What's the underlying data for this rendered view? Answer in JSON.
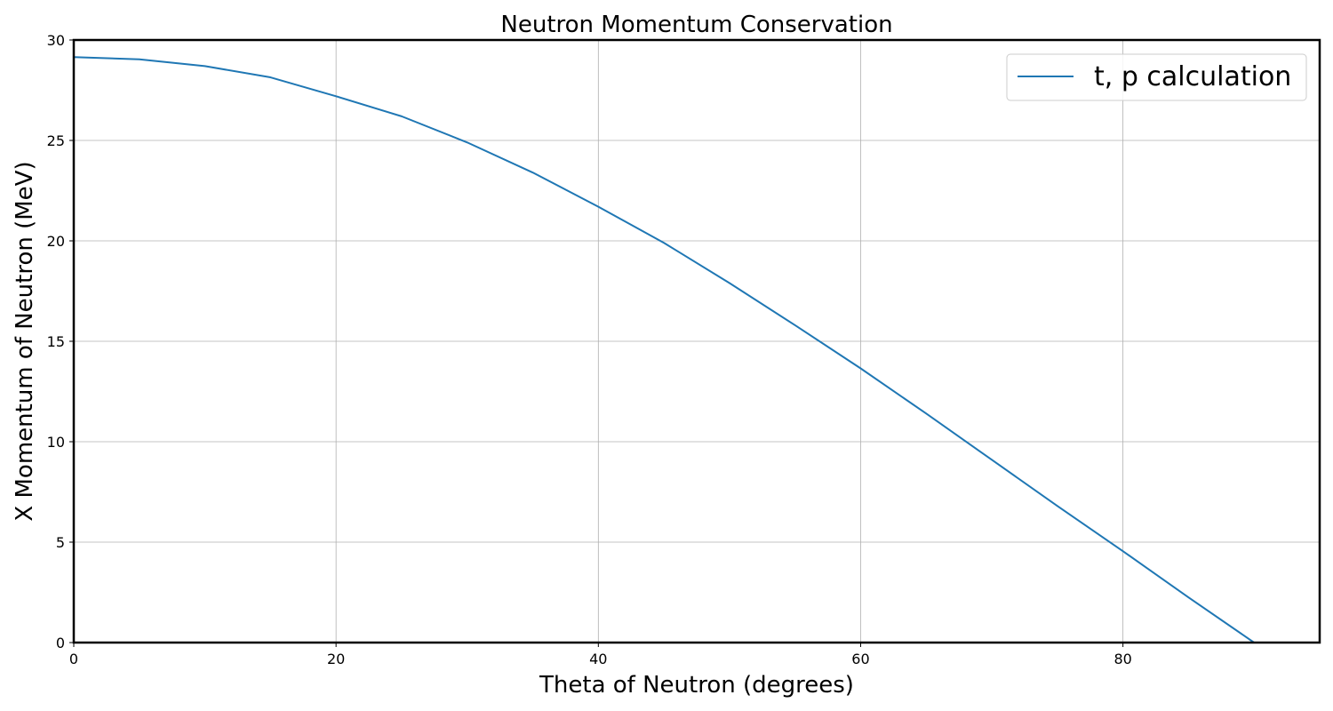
{
  "chart_data": {
    "type": "line",
    "title": "Neutron Momentum Conservation",
    "xlabel": "Theta of Neutron (degrees)",
    "ylabel": "X Momentum of Neutron (MeV)",
    "xlim": [
      0,
      95
    ],
    "ylim": [
      0,
      30
    ],
    "xticks": [
      0,
      20,
      40,
      60,
      80
    ],
    "yticks": [
      0,
      5,
      10,
      15,
      20,
      25,
      30
    ],
    "grid": true,
    "legend_position": "top-right",
    "series": [
      {
        "name": "t, p calculation",
        "color": "#1f77b4",
        "x": [
          0,
          5,
          10,
          15,
          20,
          25,
          30,
          35,
          40,
          45,
          50,
          55,
          60,
          65,
          70,
          75,
          80,
          85,
          90
        ],
        "y": [
          29.15,
          29.04,
          28.7,
          28.14,
          27.2,
          26.2,
          24.9,
          23.4,
          21.7,
          19.9,
          17.9,
          15.8,
          13.65,
          11.4,
          9.1,
          6.8,
          4.55,
          2.25,
          0
        ]
      }
    ]
  }
}
